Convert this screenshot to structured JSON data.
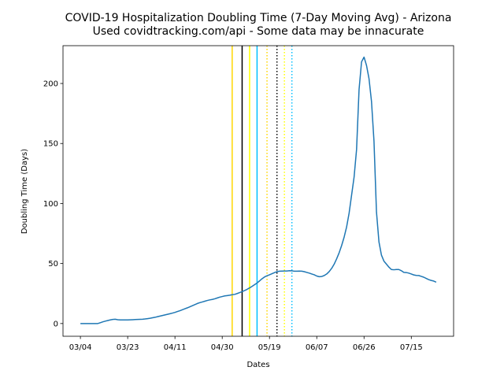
{
  "chart_data": {
    "type": "line",
    "title": "COVID-19 Hospitalization Doubling Time (7-Day Moving Avg) - Arizona",
    "subtitle": "Used covidtracking.com/api - Some data may be innacurate",
    "x_label": "Dates",
    "y_label": "Doubling Time (Days)",
    "x": [
      "03/04",
      "03/05",
      "03/06",
      "03/07",
      "03/08",
      "03/09",
      "03/10",
      "03/11",
      "03/12",
      "03/13",
      "03/14",
      "03/15",
      "03/16",
      "03/17",
      "03/18",
      "03/19",
      "03/20",
      "03/21",
      "03/22",
      "03/23",
      "03/24",
      "03/25",
      "03/26",
      "03/27",
      "03/28",
      "03/29",
      "03/30",
      "03/31",
      "04/01",
      "04/02",
      "04/03",
      "04/04",
      "04/05",
      "04/06",
      "04/07",
      "04/08",
      "04/09",
      "04/10",
      "04/11",
      "04/12",
      "04/13",
      "04/14",
      "04/15",
      "04/16",
      "04/17",
      "04/18",
      "04/19",
      "04/20",
      "04/21",
      "04/22",
      "04/23",
      "04/24",
      "04/25",
      "04/26",
      "04/27",
      "04/28",
      "04/29",
      "04/30",
      "05/01",
      "05/02",
      "05/03",
      "05/04",
      "05/05",
      "05/06",
      "05/07",
      "05/08",
      "05/09",
      "05/10",
      "05/11",
      "05/12",
      "05/13",
      "05/14",
      "05/15",
      "05/16",
      "05/17",
      "05/18",
      "05/19",
      "05/20",
      "05/21",
      "05/22",
      "05/23",
      "05/24",
      "05/25",
      "05/26",
      "05/27",
      "05/28",
      "05/29",
      "05/30",
      "05/31",
      "06/01",
      "06/02",
      "06/03",
      "06/04",
      "06/05",
      "06/06",
      "06/07",
      "06/08",
      "06/09",
      "06/10",
      "06/11",
      "06/12",
      "06/13",
      "06/14",
      "06/15",
      "06/16",
      "06/17",
      "06/18",
      "06/19",
      "06/20",
      "06/21",
      "06/22",
      "06/23",
      "06/24",
      "06/25",
      "06/26",
      "06/27",
      "06/28",
      "06/29",
      "06/30",
      "07/01",
      "07/02",
      "07/03",
      "07/04",
      "07/05",
      "07/06",
      "07/07",
      "07/08",
      "07/09",
      "07/10",
      "07/11",
      "07/12",
      "07/13",
      "07/14",
      "07/15",
      "07/16",
      "07/17",
      "07/18",
      "07/19",
      "07/20",
      "07/21",
      "07/22",
      "07/23",
      "07/24",
      "07/25"
    ],
    "values": [
      0,
      0,
      0,
      0,
      0,
      0,
      0,
      0,
      0.7,
      1.4,
      2,
      2.5,
      3,
      3.4,
      3.6,
      3.2,
      3,
      3,
      3,
      3,
      3.1,
      3.2,
      3.3,
      3.4,
      3.5,
      3.6,
      3.8,
      4.1,
      4.4,
      4.8,
      5.2,
      5.7,
      6.2,
      6.7,
      7.2,
      7.7,
      8.2,
      8.7,
      9.3,
      10,
      10.7,
      11.5,
      12.3,
      13.1,
      14,
      14.9,
      15.8,
      16.7,
      17.4,
      18,
      18.6,
      19.2,
      19.7,
      20.1,
      20.6,
      21.3,
      22,
      22.5,
      23,
      23.3,
      23.6,
      24,
      24.3,
      25,
      25.8,
      26.6,
      27.5,
      28.5,
      29.7,
      31,
      32.4,
      33.8,
      35.5,
      37.3,
      38.8,
      39.8,
      40.6,
      41.5,
      42.4,
      43.2,
      43.6,
      43.7,
      43.8,
      43.8,
      44,
      43.9,
      43.6,
      43.6,
      43.7,
      43.6,
      43.2,
      42.6,
      42,
      41.3,
      40.6,
      39.6,
      39,
      39.2,
      40,
      41.3,
      43.3,
      46,
      49.5,
      54,
      59,
      65,
      72,
      80.5,
      92,
      107,
      122,
      145,
      195,
      218,
      222,
      215,
      204,
      185,
      152,
      93,
      68,
      57,
      52,
      49.5,
      47,
      45,
      44.8,
      45,
      45,
      44,
      42.6,
      42.5,
      42,
      41.3,
      40.5,
      40.1,
      40,
      39.3,
      38.6,
      37.6,
      36.6,
      35.9,
      35.4,
      34.5
    ],
    "color": "#1f77b4",
    "xlim": [
      "02/26",
      "08/01"
    ],
    "xticks": [
      "03/04",
      "03/23",
      "04/11",
      "04/30",
      "05/19",
      "06/07",
      "06/26",
      "07/15"
    ],
    "ylim": [
      -10.6,
      231.5
    ],
    "yticks": [
      0,
      50,
      100,
      150,
      200
    ],
    "vlines": [
      {
        "x": "05/04",
        "color": "gold",
        "style": "solid"
      },
      {
        "x": "05/08",
        "color": "black",
        "style": "solid"
      },
      {
        "x": "05/11",
        "color": "yellow",
        "style": "solid"
      },
      {
        "x": "05/14",
        "color": "deepskyblue",
        "style": "solid"
      },
      {
        "x": "05/18",
        "color": "gold",
        "style": "dotted"
      },
      {
        "x": "05/22",
        "color": "black",
        "style": "dotted"
      },
      {
        "x": "05/25",
        "color": "yellow",
        "style": "dotted"
      },
      {
        "x": "05/28",
        "color": "deepskyblue",
        "style": "dotted"
      }
    ]
  }
}
